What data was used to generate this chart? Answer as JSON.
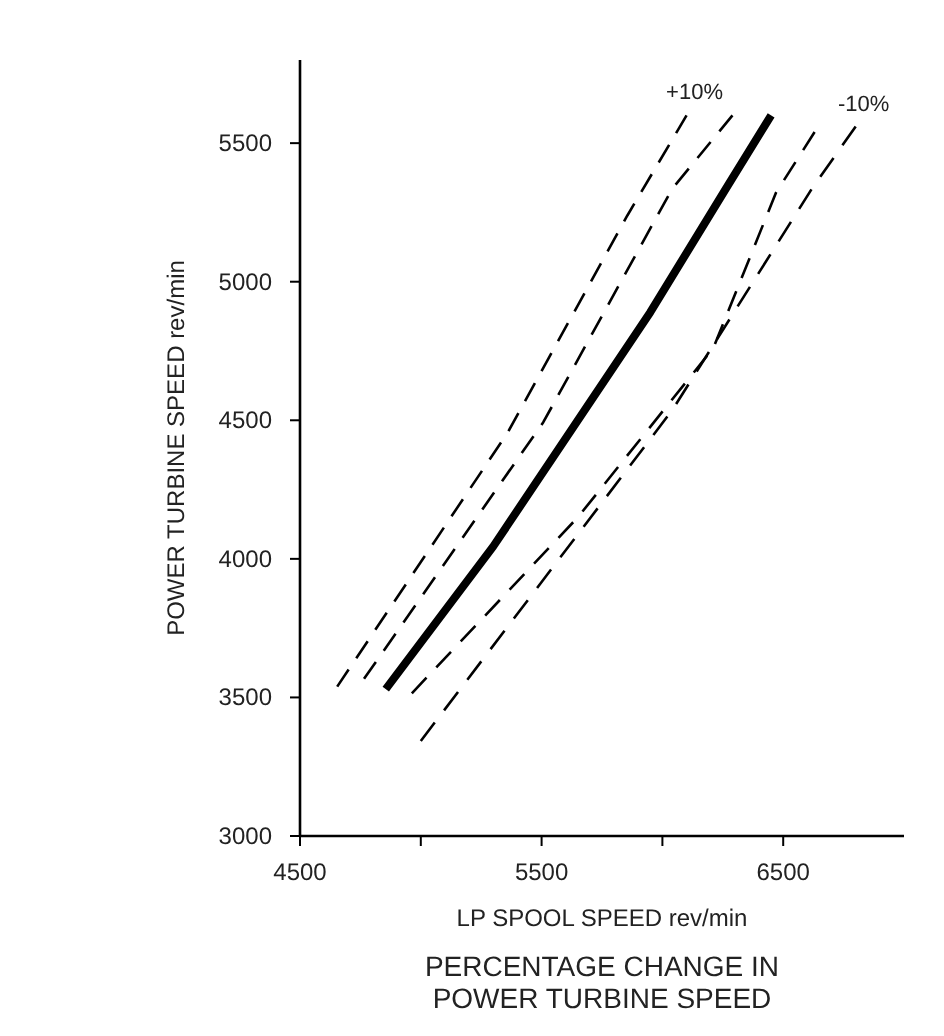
{
  "chart_data": {
    "type": "line",
    "title": "PERCENTAGE CHANGE IN\nPOWER TURBINE SPEED",
    "xlabel": "LP SPOOL SPEED rev/min",
    "ylabel": "POWER TURBINE SPEED rev/min",
    "xlim": [
      4500,
      7000
    ],
    "ylim": [
      3000,
      5800
    ],
    "xticks": [
      4500,
      {
        "value": 5000,
        "label": null
      },
      5500,
      {
        "value": 6000,
        "label": null
      },
      6500
    ],
    "yticks": [
      3000,
      3500,
      4000,
      4500,
      5000,
      5500
    ],
    "grid": false,
    "series": [
      {
        "color": "#000000",
        "line_style": "solid",
        "x": [
          4855,
          5300,
          5950,
          6263,
          6450
        ],
        "values": [
          3530,
          4045,
          4890,
          5336,
          5600
        ]
      },
      {
        "color": "#000000",
        "line_style": "dashed",
        "x": [
          4654,
          5359,
          5855,
          6100
        ],
        "values": [
          3539,
          4455,
          5239,
          5600
        ]
      },
      {
        "color": "#000000",
        "line_style": "dashed",
        "x": [
          4765,
          5507,
          6041,
          6290
        ],
        "values": [
          3567,
          4493,
          5336,
          5600
        ]
      },
      {
        "color": "#000000",
        "line_style": "dashed",
        "x": [
          4963,
          5650,
          6211,
          6470,
          6630
        ],
        "values": [
          3515,
          4150,
          4761,
          5321,
          5540
        ]
      },
      {
        "color": "#000000",
        "line_style": "dashed",
        "x": [
          5000,
          6041,
          6619,
          6800
        ],
        "values": [
          3343,
          4537,
          5336,
          5560
        ]
      }
    ],
    "annotations": [
      {
        "text": "+10%",
        "x": 6100,
        "y": 5600
      },
      {
        "text": "-10%",
        "x": 6800,
        "y": 5560
      }
    ]
  }
}
